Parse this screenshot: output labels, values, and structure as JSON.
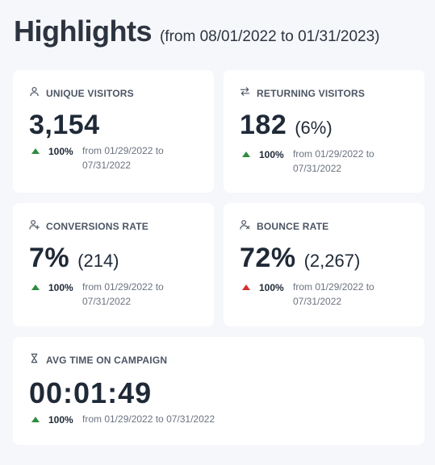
{
  "header": {
    "title": "Highlights",
    "range": "(from 08/01/2022 to 01/31/2023)"
  },
  "cards": [
    {
      "label": "UNIQUE VISITORS",
      "icon": "user-icon",
      "value": "3,154",
      "sub": "",
      "change": "100%",
      "trend": "up",
      "trend_color": "#2e8b3e",
      "period": "from 01/29/2022 to 07/31/2022"
    },
    {
      "label": "RETURNING VISITORS",
      "icon": "arrows-swap-icon",
      "value": "182",
      "sub": "(6%)",
      "change": "100%",
      "trend": "up",
      "trend_color": "#2e8b3e",
      "period": "from 01/29/2022 to 07/31/2022"
    },
    {
      "label": "CONVERSIONS RATE",
      "icon": "user-plus-icon",
      "value": "7%",
      "sub": "(214)",
      "change": "100%",
      "trend": "up",
      "trend_color": "#2e8b3e",
      "period": "from 01/29/2022 to 07/31/2022"
    },
    {
      "label": "BOUNCE RATE",
      "icon": "user-x-icon",
      "value": "72%",
      "sub": "(2,267)",
      "change": "100%",
      "trend": "up",
      "trend_color": "#d32f2f",
      "period": "from 01/29/2022 to 07/31/2022"
    },
    {
      "label": "AVG TIME ON CAMPAIGN",
      "icon": "hourglass-icon",
      "value": "00:01:49",
      "sub": "",
      "change": "100%",
      "trend": "up",
      "trend_color": "#2e8b3e",
      "period": "from 01/29/2022 to 07/31/2022"
    }
  ]
}
